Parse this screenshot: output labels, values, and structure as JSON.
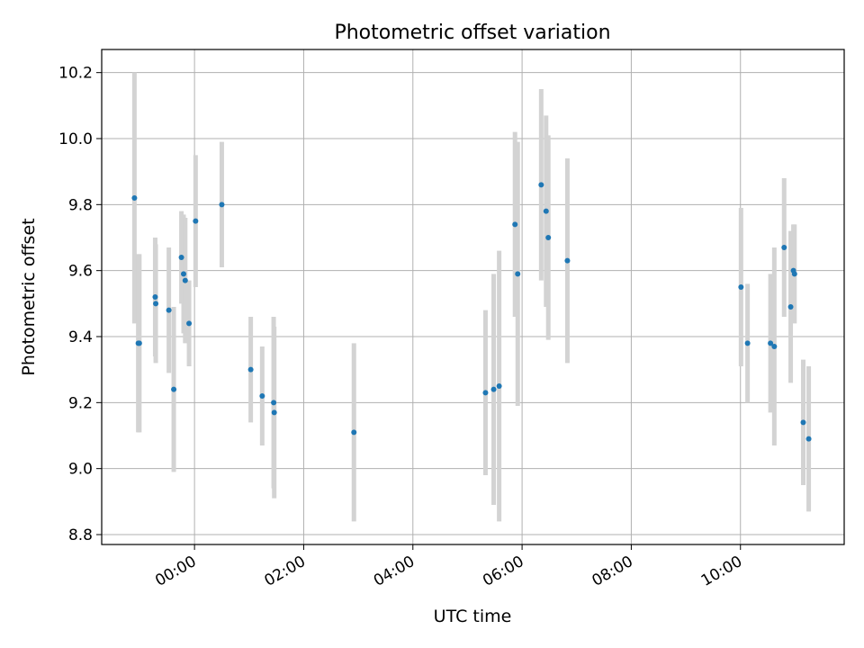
{
  "chart_data": {
    "type": "scatter",
    "title": "Photometric offset variation",
    "xlabel": "UTC time",
    "ylabel": "Photometric offset",
    "x_unit": "hours",
    "xlim": [
      -1.7,
      11.9
    ],
    "ylim": [
      8.77,
      10.27
    ],
    "x_ticks": [
      {
        "value": 0,
        "label": "00:00"
      },
      {
        "value": 2,
        "label": "02:00"
      },
      {
        "value": 4,
        "label": "04:00"
      },
      {
        "value": 6,
        "label": "06:00"
      },
      {
        "value": 8,
        "label": "08:00"
      },
      {
        "value": 10,
        "label": "10:00"
      }
    ],
    "y_ticks": [
      {
        "value": 8.8,
        "label": "8.8"
      },
      {
        "value": 9.0,
        "label": "9.0"
      },
      {
        "value": 9.2,
        "label": "9.2"
      },
      {
        "value": 9.4,
        "label": "9.4"
      },
      {
        "value": 9.6,
        "label": "9.6"
      },
      {
        "value": 9.8,
        "label": "9.8"
      },
      {
        "value": 10.0,
        "label": "10.0"
      },
      {
        "value": 10.2,
        "label": "10.2"
      }
    ],
    "grid": true,
    "colors": {
      "point": "#1f77b4",
      "errorbar": "#d3d3d3",
      "grid": "#b0b0b0"
    },
    "points": [
      {
        "x": -1.1,
        "y": 9.82,
        "yerr": 0.38
      },
      {
        "x": -1.03,
        "y": 9.38,
        "yerr": 0.27
      },
      {
        "x": -1.01,
        "y": 9.38,
        "yerr": 0.27
      },
      {
        "x": -0.72,
        "y": 9.52,
        "yerr": 0.18
      },
      {
        "x": -0.71,
        "y": 9.5,
        "yerr": 0.18
      },
      {
        "x": -0.47,
        "y": 9.48,
        "yerr": 0.19
      },
      {
        "x": -0.38,
        "y": 9.24,
        "yerr": 0.25
      },
      {
        "x": -0.24,
        "y": 9.64,
        "yerr": 0.14
      },
      {
        "x": -0.2,
        "y": 9.59,
        "yerr": 0.18
      },
      {
        "x": -0.17,
        "y": 9.57,
        "yerr": 0.19
      },
      {
        "x": -0.1,
        "y": 9.44,
        "yerr": 0.13
      },
      {
        "x": 0.02,
        "y": 9.75,
        "yerr": 0.2
      },
      {
        "x": 0.5,
        "y": 9.8,
        "yerr": 0.19
      },
      {
        "x": 1.03,
        "y": 9.3,
        "yerr": 0.16
      },
      {
        "x": 1.24,
        "y": 9.22,
        "yerr": 0.15
      },
      {
        "x": 1.45,
        "y": 9.2,
        "yerr": 0.26
      },
      {
        "x": 1.46,
        "y": 9.17,
        "yerr": 0.26
      },
      {
        "x": 2.92,
        "y": 9.11,
        "yerr": 0.27
      },
      {
        "x": 5.33,
        "y": 9.23,
        "yerr": 0.25
      },
      {
        "x": 5.48,
        "y": 9.24,
        "yerr": 0.35
      },
      {
        "x": 5.58,
        "y": 9.25,
        "yerr": 0.41
      },
      {
        "x": 5.87,
        "y": 9.74,
        "yerr": 0.28
      },
      {
        "x": 5.92,
        "y": 9.59,
        "yerr": 0.4
      },
      {
        "x": 6.35,
        "y": 9.86,
        "yerr": 0.29
      },
      {
        "x": 6.44,
        "y": 9.78,
        "yerr": 0.29
      },
      {
        "x": 6.48,
        "y": 9.7,
        "yerr": 0.31
      },
      {
        "x": 6.83,
        "y": 9.63,
        "yerr": 0.31
      },
      {
        "x": 10.01,
        "y": 9.55,
        "yerr": 0.24
      },
      {
        "x": 10.13,
        "y": 9.38,
        "yerr": 0.18
      },
      {
        "x": 10.55,
        "y": 9.38,
        "yerr": 0.21
      },
      {
        "x": 10.62,
        "y": 9.37,
        "yerr": 0.3
      },
      {
        "x": 10.8,
        "y": 9.67,
        "yerr": 0.21
      },
      {
        "x": 10.92,
        "y": 9.49,
        "yerr": 0.23
      },
      {
        "x": 10.97,
        "y": 9.6,
        "yerr": 0.14
      },
      {
        "x": 10.99,
        "y": 9.59,
        "yerr": 0.15
      },
      {
        "x": 11.15,
        "y": 9.14,
        "yerr": 0.19
      },
      {
        "x": 11.25,
        "y": 9.09,
        "yerr": 0.22
      }
    ]
  }
}
